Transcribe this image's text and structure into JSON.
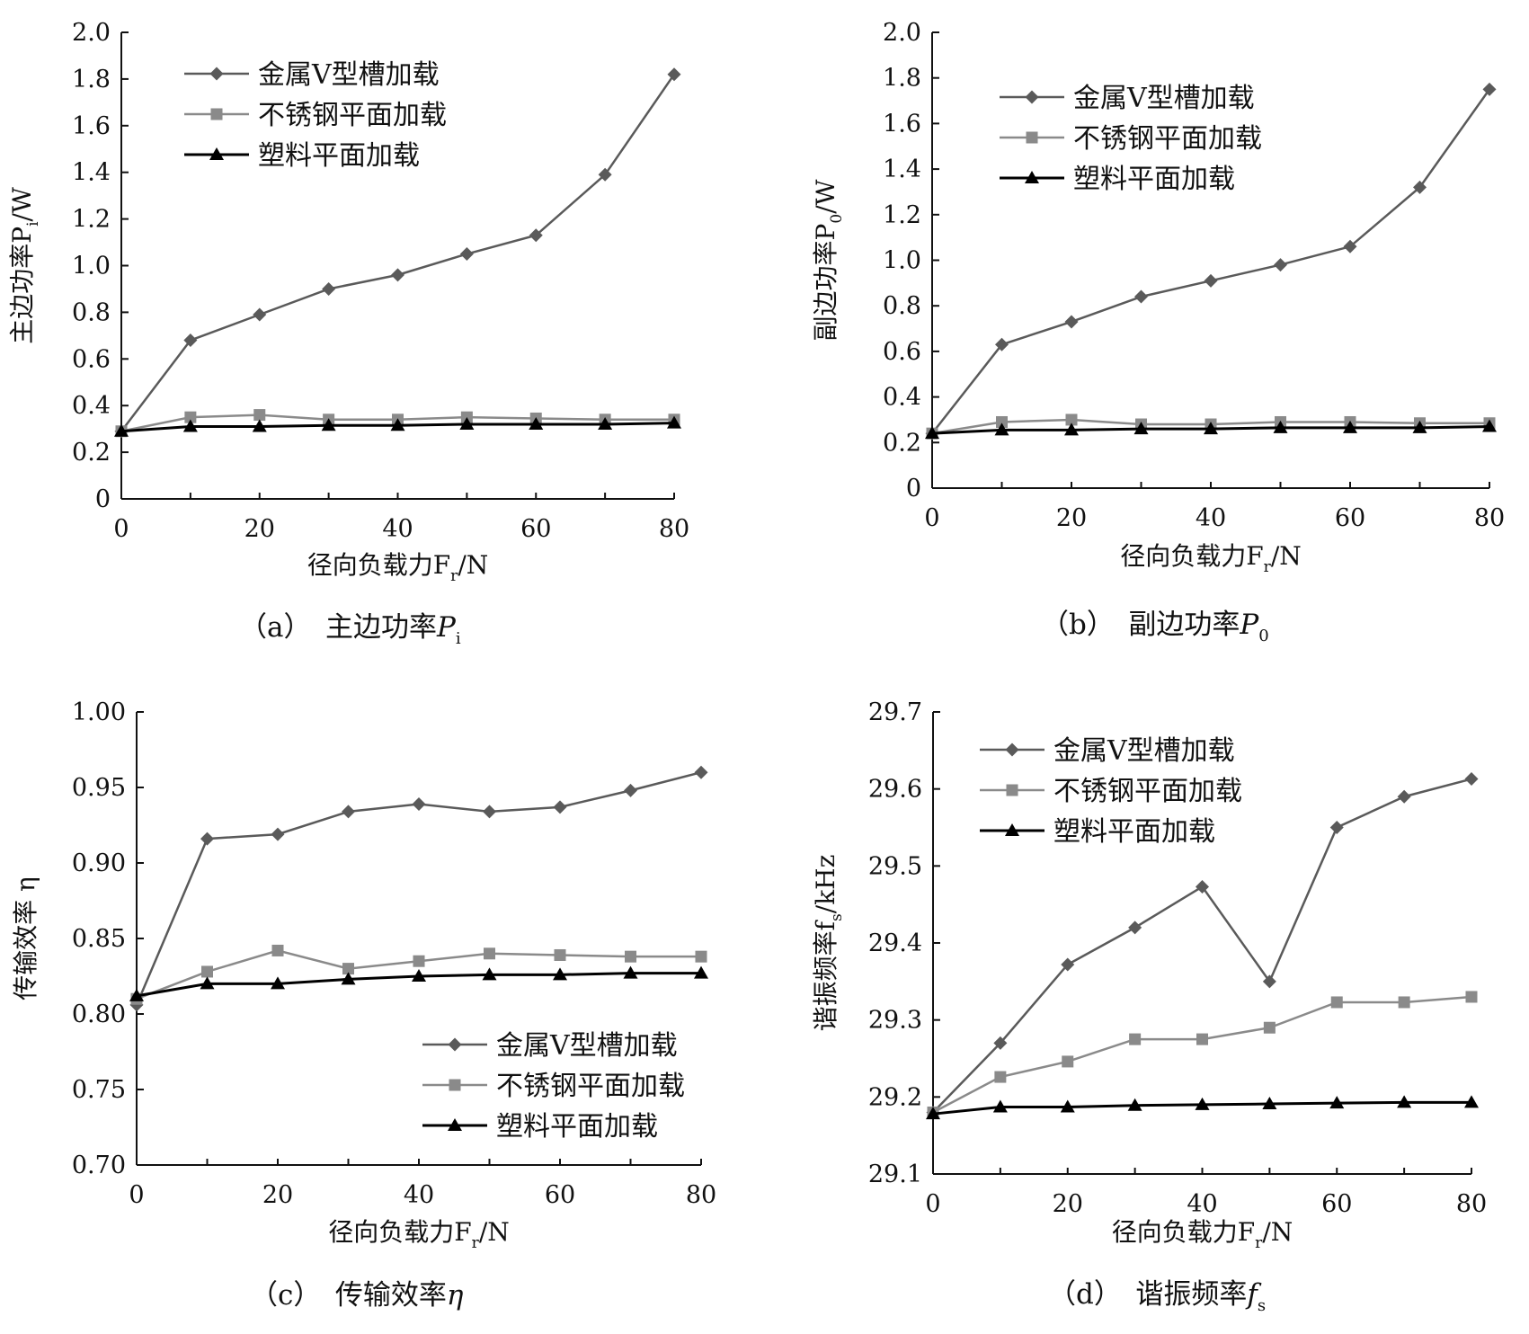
{
  "chart_data": [
    {
      "type": "line",
      "caption": "（a）　主边功率",
      "caption_symbol": "P",
      "caption_sub": "i",
      "xlabel": "径向负载力F",
      "xlabel_sub": "r",
      "xlabel_unit": "/N",
      "ylabel": "主边功率P",
      "ylabel_sub": "i",
      "ylabel_unit": "/W",
      "x": [
        0,
        10,
        20,
        30,
        40,
        50,
        60,
        70,
        80
      ],
      "xlim": [
        0,
        80
      ],
      "ylim": [
        0,
        2.0
      ],
      "xticks": [
        "0",
        "20",
        "40",
        "60",
        "80"
      ],
      "yticks": [
        "0",
        "0.2",
        "0.4",
        "0.6",
        "0.8",
        "1.0",
        "1.2",
        "1.4",
        "1.6",
        "1.8",
        "2.0"
      ],
      "legend": "top-left",
      "grid": false,
      "series": [
        {
          "name": "金属V型槽加载",
          "marker": "diamond",
          "color": "#5a5a5a",
          "values": [
            0.29,
            0.68,
            0.79,
            0.9,
            0.96,
            1.05,
            1.13,
            1.39,
            1.82
          ]
        },
        {
          "name": "不锈钢平面加载",
          "marker": "square",
          "color": "#8a8a8a",
          "values": [
            0.29,
            0.35,
            0.36,
            0.34,
            0.34,
            0.35,
            0.345,
            0.34,
            0.34
          ]
        },
        {
          "name": "塑料平面加载",
          "marker": "triangle",
          "color": "#000000",
          "values": [
            0.29,
            0.31,
            0.31,
            0.315,
            0.315,
            0.32,
            0.32,
            0.32,
            0.325
          ]
        }
      ]
    },
    {
      "type": "line",
      "caption": "（b）　副边功率",
      "caption_symbol": "P",
      "caption_sub": "0",
      "xlabel": "径向负载力F",
      "xlabel_sub": "r",
      "xlabel_unit": "/N",
      "ylabel": "副边功率P",
      "ylabel_sub": "0",
      "ylabel_unit": "/W",
      "x": [
        0,
        10,
        20,
        30,
        40,
        50,
        60,
        70,
        80
      ],
      "xlim": [
        0,
        80
      ],
      "ylim": [
        0,
        2.0
      ],
      "xticks": [
        "0",
        "20",
        "40",
        "60",
        "80"
      ],
      "yticks": [
        "0",
        "0.2",
        "0.4",
        "0.6",
        "0.8",
        "1.0",
        "1.2",
        "1.4",
        "1.6",
        "1.8",
        "2.0"
      ],
      "legend": "top-left",
      "grid": false,
      "series": [
        {
          "name": "金属V型槽加载",
          "marker": "diamond",
          "color": "#5a5a5a",
          "values": [
            0.24,
            0.63,
            0.73,
            0.84,
            0.91,
            0.98,
            1.06,
            1.32,
            1.75
          ]
        },
        {
          "name": "不锈钢平面加载",
          "marker": "square",
          "color": "#8a8a8a",
          "values": [
            0.24,
            0.29,
            0.3,
            0.28,
            0.28,
            0.29,
            0.29,
            0.285,
            0.285
          ]
        },
        {
          "name": "塑料平面加载",
          "marker": "triangle",
          "color": "#000000",
          "values": [
            0.24,
            0.255,
            0.255,
            0.26,
            0.26,
            0.265,
            0.265,
            0.265,
            0.27
          ]
        }
      ]
    },
    {
      "type": "line",
      "caption": "（c）　传输效率",
      "caption_symbol": "η",
      "caption_sub": "",
      "xlabel": "径向负载力F",
      "xlabel_sub": "r",
      "xlabel_unit": "/N",
      "ylabel": "传输效率 η",
      "ylabel_sub": "",
      "ylabel_unit": "",
      "x": [
        0,
        10,
        20,
        30,
        40,
        50,
        60,
        70,
        80
      ],
      "xlim": [
        0,
        80
      ],
      "ylim": [
        0.7,
        1.0
      ],
      "xticks": [
        "0",
        "20",
        "40",
        "60",
        "80"
      ],
      "yticks": [
        "0.70",
        "0.75",
        "0.80",
        "0.85",
        "0.90",
        "0.95",
        "1.00"
      ],
      "legend": "bottom-right",
      "grid": false,
      "series": [
        {
          "name": "金属V型槽加载",
          "marker": "diamond",
          "color": "#5a5a5a",
          "values": [
            0.806,
            0.916,
            0.919,
            0.934,
            0.939,
            0.934,
            0.937,
            0.948,
            0.96
          ]
        },
        {
          "name": "不锈钢平面加载",
          "marker": "square",
          "color": "#8a8a8a",
          "values": [
            0.81,
            0.828,
            0.842,
            0.83,
            0.835,
            0.84,
            0.839,
            0.838,
            0.838
          ]
        },
        {
          "name": "塑料平面加载",
          "marker": "triangle",
          "color": "#000000",
          "values": [
            0.812,
            0.82,
            0.82,
            0.823,
            0.825,
            0.826,
            0.826,
            0.827,
            0.827
          ]
        }
      ]
    },
    {
      "type": "line",
      "caption": "（d）　谐振频率",
      "caption_symbol": "f",
      "caption_sub": "s",
      "xlabel": "径向负载力F",
      "xlabel_sub": "r",
      "xlabel_unit": "/N",
      "ylabel": "谐振频率f",
      "ylabel_sub": "s",
      "ylabel_unit": "/kHz",
      "x": [
        0,
        10,
        20,
        30,
        40,
        50,
        60,
        70,
        80
      ],
      "xlim": [
        0,
        80
      ],
      "ylim": [
        29.1,
        29.7
      ],
      "xticks": [
        "0",
        "20",
        "40",
        "60",
        "80"
      ],
      "yticks": [
        "29.1",
        "29.2",
        "29.3",
        "29.4",
        "29.5",
        "29.6",
        "29.7"
      ],
      "legend": "top-left",
      "grid": false,
      "series": [
        {
          "name": "金属V型槽加载",
          "marker": "diamond",
          "color": "#5a5a5a",
          "values": [
            29.18,
            29.27,
            29.372,
            29.42,
            29.473,
            29.35,
            29.55,
            29.59,
            29.613
          ]
        },
        {
          "name": "不锈钢平面加载",
          "marker": "square",
          "color": "#8a8a8a",
          "values": [
            29.18,
            29.226,
            29.246,
            29.275,
            29.275,
            29.29,
            29.323,
            29.323,
            29.33
          ]
        },
        {
          "name": "塑料平面加载",
          "marker": "triangle",
          "color": "#000000",
          "values": [
            29.178,
            29.187,
            29.187,
            29.189,
            29.19,
            29.191,
            29.192,
            29.193,
            29.193
          ]
        }
      ]
    }
  ]
}
